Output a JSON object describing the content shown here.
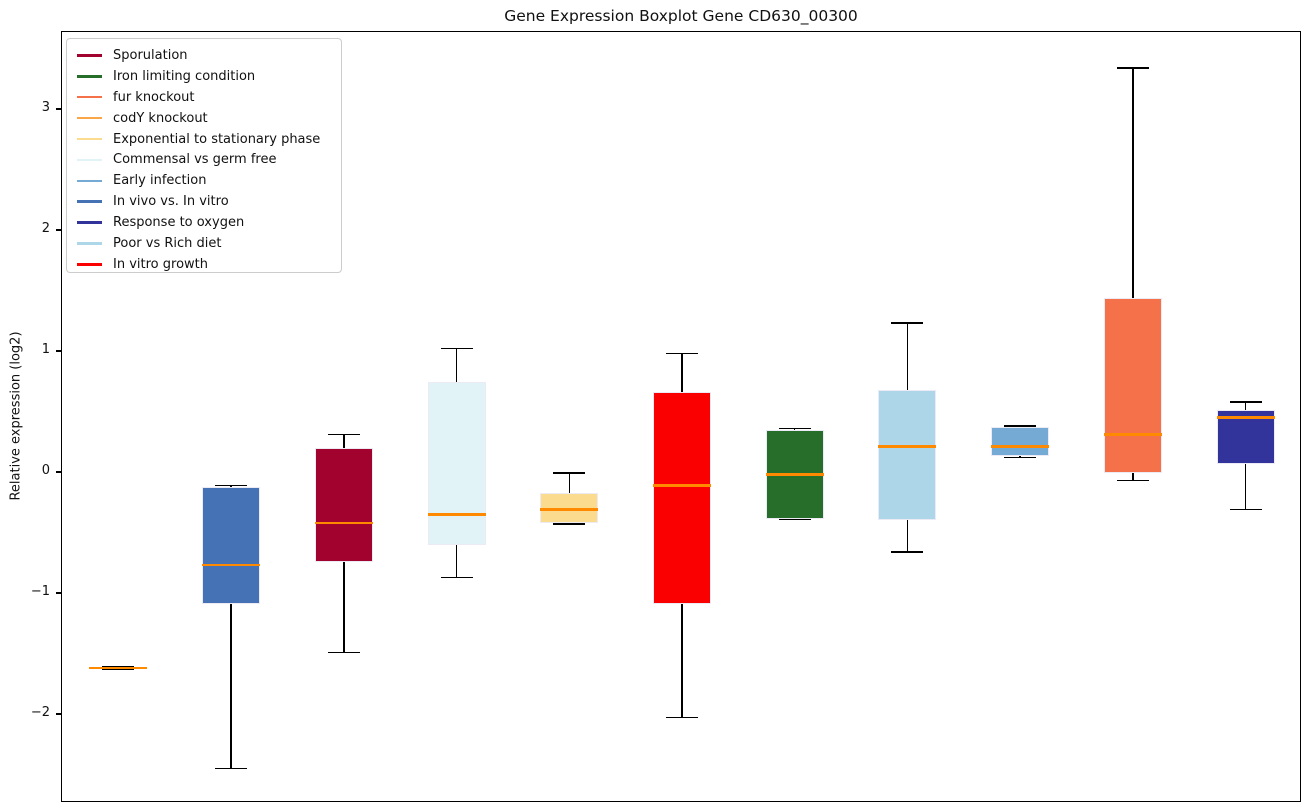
{
  "chart_data": {
    "type": "boxplot",
    "title": "Gene Expression Boxplot Gene CD630_00300",
    "xlabel": "",
    "ylabel": "Relative expression (log2)",
    "ylim": [
      -2.74,
      3.64
    ],
    "grid": false,
    "legend_position": "upper left",
    "median_color": "#FF8A00",
    "whisker_color": "#000000",
    "box_edge_color": "#ECEAF4",
    "boxes": [
      {
        "label": "codY knockout",
        "color": "#F9A648",
        "whislo": -1.63,
        "q1": -1.63,
        "med": -1.62,
        "q3": -1.61,
        "whishi": -1.61
      },
      {
        "label": "In vivo vs. In vitro",
        "color": "#4472B4",
        "whislo": -2.45,
        "q1": -1.09,
        "med": -0.77,
        "q3": -0.12,
        "whishi": -0.11
      },
      {
        "label": "Sporulation",
        "color": "#A2032E",
        "whislo": -1.49,
        "q1": -0.74,
        "med": -0.42,
        "q3": 0.2,
        "whishi": 0.31
      },
      {
        "label": "Commensal vs germ free",
        "color": "#E2F3F8",
        "whislo": -0.87,
        "q1": -0.6,
        "med": -0.35,
        "q3": 0.74,
        "whishi": 1.02
      },
      {
        "label": "Exponential to stationary phase",
        "color": "#FBDC8E",
        "whislo": -0.43,
        "q1": -0.42,
        "med": -0.31,
        "q3": -0.17,
        "whishi": -0.01
      },
      {
        "label": "In vitro growth",
        "color": "#FA0000",
        "whislo": -2.03,
        "q1": -1.09,
        "med": -0.11,
        "q3": 0.66,
        "whishi": 0.98
      },
      {
        "label": "Iron limiting condition",
        "color": "#276E2B",
        "whislo": -0.39,
        "q1": -0.39,
        "med": -0.02,
        "q3": 0.35,
        "whishi": 0.36
      },
      {
        "label": "Poor vs Rich diet",
        "color": "#ADD7E8",
        "whislo": -0.66,
        "q1": -0.4,
        "med": 0.21,
        "q3": 0.68,
        "whishi": 1.23
      },
      {
        "label": "Early infection",
        "color": "#74AAD4",
        "whislo": 0.12,
        "q1": 0.13,
        "med": 0.21,
        "q3": 0.37,
        "whishi": 0.38
      },
      {
        "label": "fur knockout",
        "color": "#F47149",
        "whislo": -0.07,
        "q1": -0.01,
        "med": 0.31,
        "q3": 1.44,
        "whishi": 3.34
      },
      {
        "label": "Response to oxygen",
        "color": "#32339B",
        "whislo": -0.31,
        "q1": 0.07,
        "med": 0.45,
        "q3": 0.51,
        "whishi": 0.58
      }
    ]
  },
  "axes": {
    "yticks": [
      {
        "label": "3",
        "value": 3
      },
      {
        "label": "2",
        "value": 2
      },
      {
        "label": "1",
        "value": 1
      },
      {
        "label": "0",
        "value": 0
      },
      {
        "label": "−1",
        "value": -1
      },
      {
        "label": "−2",
        "value": -2
      }
    ]
  },
  "legend": {
    "items": [
      {
        "label": "Sporulation",
        "color": "#A2032E"
      },
      {
        "label": "Iron limiting condition",
        "color": "#276E2B"
      },
      {
        "label": "fur knockout",
        "color": "#F47149"
      },
      {
        "label": "codY knockout",
        "color": "#F9A648"
      },
      {
        "label": "Exponential to stationary phase",
        "color": "#FBDC8E"
      },
      {
        "label": "Commensal vs germ free",
        "color": "#E2F3F8"
      },
      {
        "label": "Early infection",
        "color": "#74AAD4"
      },
      {
        "label": "In vivo vs. In vitro",
        "color": "#4472B4"
      },
      {
        "label": "Response to oxygen",
        "color": "#32339B"
      },
      {
        "label": "Poor vs Rich diet",
        "color": "#ADD7E8"
      },
      {
        "label": "In vitro growth",
        "color": "#FA0000"
      }
    ]
  }
}
